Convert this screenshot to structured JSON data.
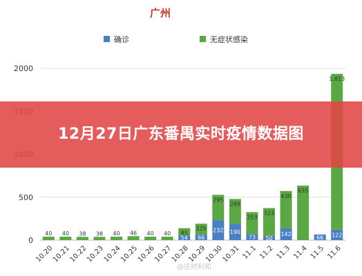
{
  "banner": {
    "headline": "12月27日广东番禺实时疫情数据图"
  },
  "watermark": "@庄时利和",
  "colors": {
    "confirmed": "#4a7fc4",
    "asymptomatic": "#5aa844",
    "title": "#c8392b",
    "banner": "#e04646",
    "grid": "#dddddd",
    "text": "#333333"
  },
  "chart_data": {
    "type": "bar",
    "stacked": true,
    "title": "广州",
    "xlabel": "",
    "ylabel": "",
    "ylim": [
      0,
      2000
    ],
    "yticks": [
      0,
      500,
      1000,
      1500,
      2000
    ],
    "grid": true,
    "legend_position": "top",
    "categories": [
      "10.20",
      "10.21",
      "10.22",
      "10.23",
      "10.24",
      "10.25",
      "10.26",
      "10.27",
      "10.28",
      "10.29",
      "10.30",
      "10.31",
      "11.1",
      "11.2",
      "11.3",
      "11.4",
      "11.5",
      "11.6"
    ],
    "series": [
      {
        "name": "确诊",
        "color": "#4a7fc4",
        "values": [
          null,
          null,
          null,
          null,
          null,
          null,
          null,
          null,
          54,
          66,
          232,
          190,
          73,
          50,
          142,
          null,
          66,
          122
        ]
      },
      {
        "name": "无症状感染",
        "color": "#5aa844",
        "values": [
          40,
          40,
          38,
          38,
          40,
          46,
          40,
          40,
          85,
          125,
          295,
          289,
          253,
          323,
          430,
          635,
          null,
          1813
        ]
      }
    ]
  }
}
